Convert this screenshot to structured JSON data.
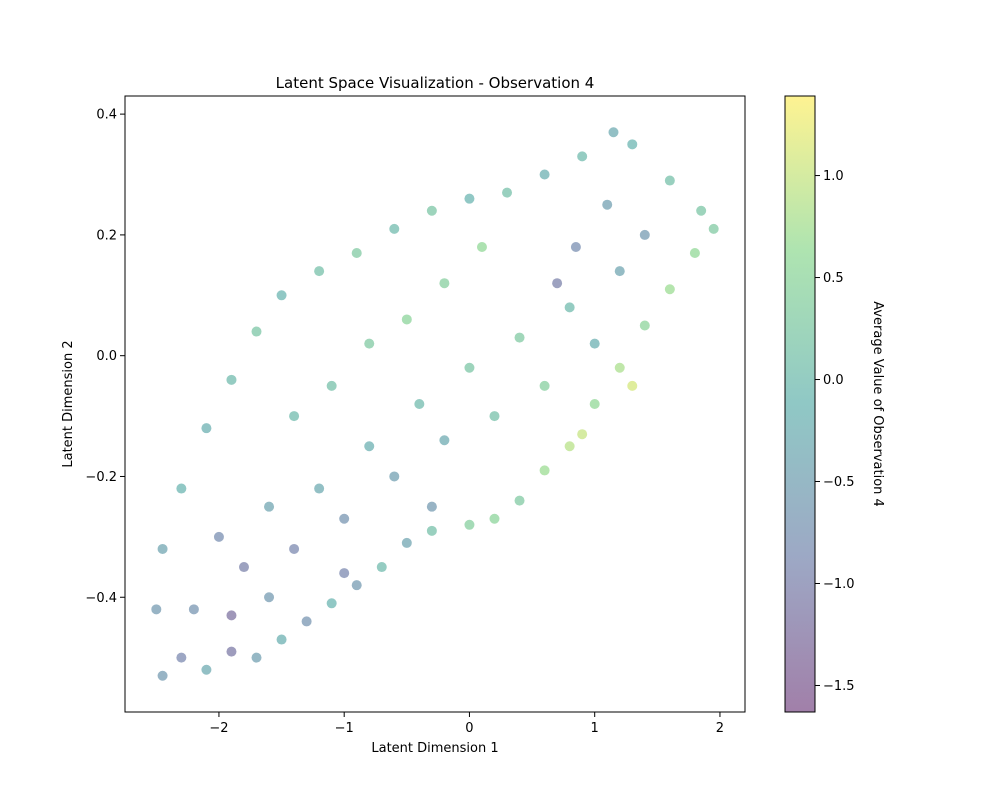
{
  "chart_data": {
    "type": "scatter",
    "title": "Latent Space Visualization - Observation 4",
    "xlabel": "Latent Dimension 1",
    "ylabel": "Latent Dimension 2",
    "xlim": [
      -2.75,
      2.2
    ],
    "ylim": [
      -0.59,
      0.43
    ],
    "xticks": [
      -2,
      -1,
      0,
      1,
      2
    ],
    "xtick_labels": [
      "−2",
      "−1",
      "0",
      "1",
      "2"
    ],
    "yticks": [
      -0.4,
      -0.2,
      0.0,
      0.2,
      0.4
    ],
    "ytick_labels": [
      "−0.4",
      "−0.2",
      "0.0",
      "0.2",
      "0.4"
    ],
    "grid": false,
    "colormap": "viridis",
    "marker_alpha": 0.5,
    "colorbar": {
      "label": "Average Value of Observation 4",
      "range": [
        -1.63,
        1.39
      ],
      "ticks": [
        -1.5,
        -1.0,
        -0.5,
        0.0,
        0.5,
        1.0
      ],
      "tick_labels": [
        "−1.5",
        "−1.0",
        "−0.5",
        "0.0",
        "0.5",
        "1.0"
      ]
    },
    "points": [
      {
        "x": -2.45,
        "y": -0.53,
        "c": -0.6
      },
      {
        "x": -2.3,
        "y": -0.5,
        "c": -0.9
      },
      {
        "x": -2.1,
        "y": -0.52,
        "c": -0.3
      },
      {
        "x": -1.9,
        "y": -0.49,
        "c": -1.1
      },
      {
        "x": -1.7,
        "y": -0.5,
        "c": -0.5
      },
      {
        "x": -1.5,
        "y": -0.47,
        "c": -0.2
      },
      {
        "x": -1.3,
        "y": -0.44,
        "c": -0.7
      },
      {
        "x": -1.1,
        "y": -0.41,
        "c": -0.1
      },
      {
        "x": -0.9,
        "y": -0.38,
        "c": -0.6
      },
      {
        "x": -0.7,
        "y": -0.35,
        "c": 0.0
      },
      {
        "x": -0.5,
        "y": -0.31,
        "c": -0.4
      },
      {
        "x": -0.3,
        "y": -0.29,
        "c": 0.1
      },
      {
        "x": 0.0,
        "y": -0.28,
        "c": 0.4
      },
      {
        "x": 0.2,
        "y": -0.27,
        "c": 0.5
      },
      {
        "x": 0.4,
        "y": -0.24,
        "c": 0.3
      },
      {
        "x": 0.6,
        "y": -0.19,
        "c": 0.7
      },
      {
        "x": 0.8,
        "y": -0.15,
        "c": 0.9
      },
      {
        "x": 1.0,
        "y": -0.08,
        "c": 0.6
      },
      {
        "x": 1.2,
        "y": -0.02,
        "c": 0.8
      },
      {
        "x": 1.4,
        "y": 0.05,
        "c": 0.5
      },
      {
        "x": 1.6,
        "y": 0.11,
        "c": 0.7
      },
      {
        "x": 1.8,
        "y": 0.17,
        "c": 0.6
      },
      {
        "x": 1.95,
        "y": 0.21,
        "c": 0.3
      },
      {
        "x": 1.85,
        "y": 0.24,
        "c": 0.2
      },
      {
        "x": 1.6,
        "y": 0.29,
        "c": 0.1
      },
      {
        "x": 1.3,
        "y": 0.35,
        "c": -0.1
      },
      {
        "x": 1.15,
        "y": 0.37,
        "c": -0.3
      },
      {
        "x": 0.9,
        "y": 0.33,
        "c": 0.0
      },
      {
        "x": 0.6,
        "y": 0.3,
        "c": -0.2
      },
      {
        "x": 0.3,
        "y": 0.27,
        "c": 0.1
      },
      {
        "x": 0.0,
        "y": 0.26,
        "c": -0.1
      },
      {
        "x": -0.3,
        "y": 0.24,
        "c": 0.2
      },
      {
        "x": -0.6,
        "y": 0.21,
        "c": 0.0
      },
      {
        "x": -0.9,
        "y": 0.17,
        "c": 0.3
      },
      {
        "x": -1.2,
        "y": 0.14,
        "c": 0.1
      },
      {
        "x": -1.5,
        "y": 0.1,
        "c": -0.1
      },
      {
        "x": -1.7,
        "y": 0.04,
        "c": 0.2
      },
      {
        "x": -1.9,
        "y": -0.04,
        "c": 0.0
      },
      {
        "x": -2.1,
        "y": -0.12,
        "c": -0.2
      },
      {
        "x": -2.3,
        "y": -0.22,
        "c": -0.1
      },
      {
        "x": -2.45,
        "y": -0.32,
        "c": -0.4
      },
      {
        "x": -2.5,
        "y": -0.42,
        "c": -0.6
      },
      {
        "x": -2.0,
        "y": -0.3,
        "c": -0.8
      },
      {
        "x": -1.8,
        "y": -0.35,
        "c": -1.0
      },
      {
        "x": -1.6,
        "y": -0.25,
        "c": -0.4
      },
      {
        "x": -1.4,
        "y": -0.32,
        "c": -0.9
      },
      {
        "x": -1.2,
        "y": -0.22,
        "c": -0.3
      },
      {
        "x": -1.0,
        "y": -0.27,
        "c": -0.7
      },
      {
        "x": -0.8,
        "y": -0.15,
        "c": -0.2
      },
      {
        "x": -0.6,
        "y": -0.2,
        "c": -0.5
      },
      {
        "x": -0.4,
        "y": -0.08,
        "c": 0.0
      },
      {
        "x": -0.2,
        "y": -0.14,
        "c": -0.3
      },
      {
        "x": 0.0,
        "y": -0.02,
        "c": 0.2
      },
      {
        "x": 0.2,
        "y": -0.1,
        "c": 0.1
      },
      {
        "x": 0.4,
        "y": 0.03,
        "c": 0.3
      },
      {
        "x": 0.6,
        "y": -0.05,
        "c": 0.4
      },
      {
        "x": 0.8,
        "y": 0.08,
        "c": 0.0
      },
      {
        "x": 1.0,
        "y": 0.02,
        "c": -0.2
      },
      {
        "x": 1.2,
        "y": 0.14,
        "c": -0.4
      },
      {
        "x": 1.4,
        "y": 0.2,
        "c": -0.6
      },
      {
        "x": 1.1,
        "y": 0.25,
        "c": -0.5
      },
      {
        "x": 0.85,
        "y": 0.18,
        "c": -0.8
      },
      {
        "x": 0.7,
        "y": 0.12,
        "c": -1.0
      },
      {
        "x": -0.2,
        "y": 0.12,
        "c": 0.4
      },
      {
        "x": -0.5,
        "y": 0.06,
        "c": 0.5
      },
      {
        "x": -0.8,
        "y": 0.02,
        "c": 0.3
      },
      {
        "x": -1.1,
        "y": -0.05,
        "c": 0.1
      },
      {
        "x": -1.4,
        "y": -0.1,
        "c": 0.0
      },
      {
        "x": -2.2,
        "y": -0.42,
        "c": -0.7
      },
      {
        "x": -1.9,
        "y": -0.43,
        "c": -1.2
      },
      {
        "x": -1.6,
        "y": -0.4,
        "c": -0.6
      },
      {
        "x": -1.0,
        "y": -0.36,
        "c": -0.9
      },
      {
        "x": 0.9,
        "y": -0.13,
        "c": 1.0
      },
      {
        "x": 1.3,
        "y": -0.05,
        "c": 1.1
      },
      {
        "x": 0.1,
        "y": 0.18,
        "c": 0.6
      },
      {
        "x": -0.3,
        "y": -0.25,
        "c": -0.6
      }
    ]
  }
}
